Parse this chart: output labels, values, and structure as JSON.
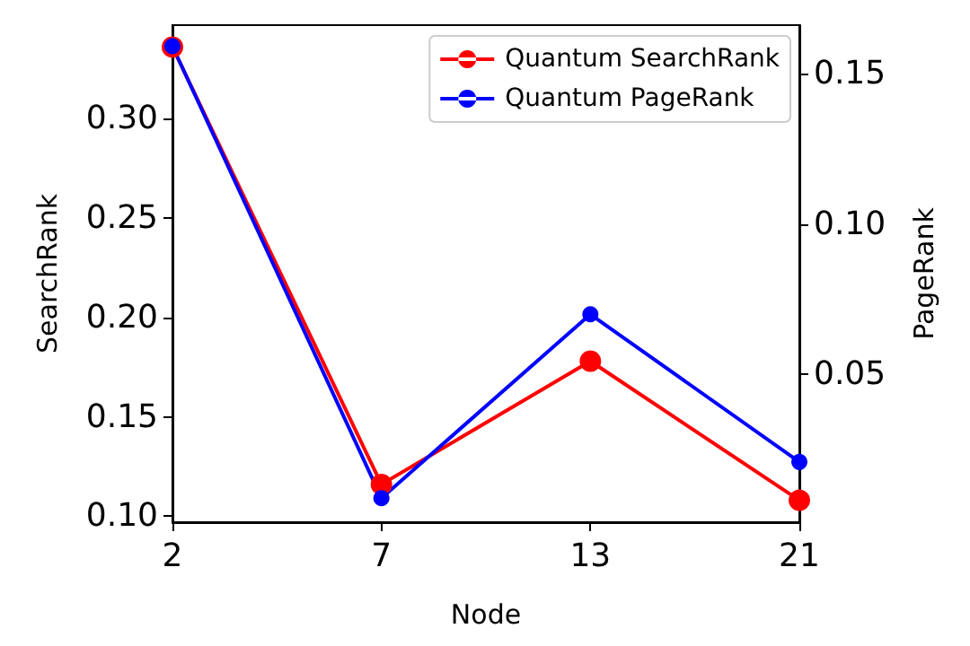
{
  "chart_data": {
    "type": "line",
    "xlabel": "Node",
    "ylabel": "SearchRank",
    "y2label": "PageRank",
    "categories": [
      "2",
      "7",
      "13",
      "21"
    ],
    "series": [
      {
        "name": "Quantum SearchRank",
        "color": "#ff0000",
        "values": [
          0.336,
          0.116,
          0.178,
          0.108
        ]
      },
      {
        "name": "Quantum PageRank",
        "color": "#0000ff",
        "axis": "y2",
        "values": [
          0.159,
          0.009,
          0.07,
          0.021
        ]
      }
    ],
    "ylim": [
      0.097,
      0.347
    ],
    "yticks": [
      {
        "value": 0.1,
        "label": "0.10"
      },
      {
        "value": 0.15,
        "label": "0.15"
      },
      {
        "value": 0.2,
        "label": "0.20"
      },
      {
        "value": 0.25,
        "label": "0.25"
      },
      {
        "value": 0.3,
        "label": "0.30"
      }
    ],
    "y2lim": [
      0.001,
      0.166
    ],
    "y2ticks": [
      {
        "value": 0.05,
        "label": "0.05"
      },
      {
        "value": 0.1,
        "label": "0.10"
      },
      {
        "value": 0.15,
        "label": "0.15"
      }
    ],
    "legend": "top right",
    "marker": "circle",
    "line_style": "solid",
    "grid": false
  }
}
